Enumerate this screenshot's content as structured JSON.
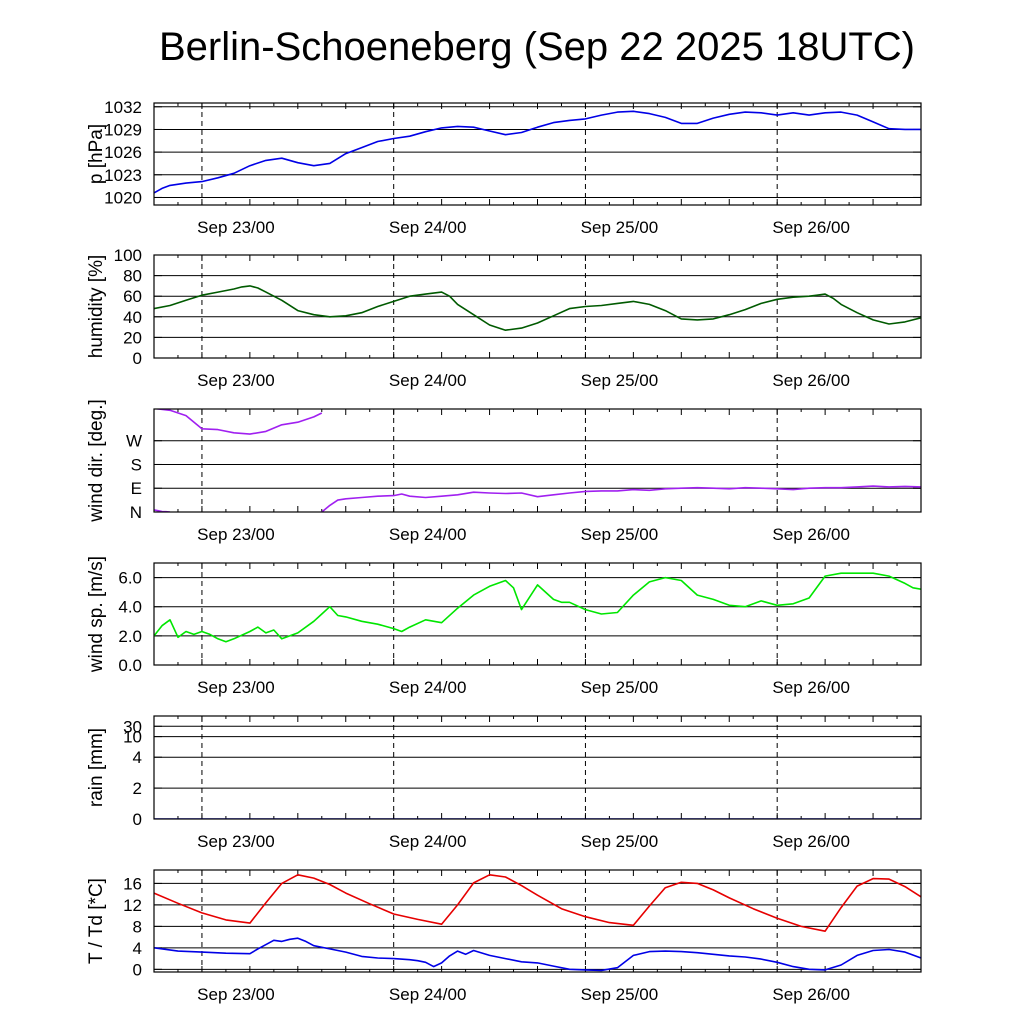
{
  "title": "Berlin-Schoeneberg (Sep 22 2025 18UTC)",
  "chart_data": {
    "type": "line",
    "x_unit": "hours since Sep 22 18UTC",
    "x_range": [
      0,
      96
    ],
    "day_ticks": [
      {
        "x": 6,
        "label": "Sep 23/00"
      },
      {
        "x": 30,
        "label": "Sep 24/00"
      },
      {
        "x": 54,
        "label": "Sep 25/00"
      },
      {
        "x": 78,
        "label": "Sep 26/00"
      }
    ],
    "panels": [
      {
        "id": "pressure",
        "ylabel": "p [hPa]",
        "ylim": [
          1019,
          1032.5
        ],
        "ticks": [
          {
            "v": 1020,
            "label": "1020"
          },
          {
            "v": 1023,
            "label": "1023"
          },
          {
            "v": 1026,
            "label": "1026"
          },
          {
            "v": 1029,
            "label": "1029"
          },
          {
            "v": 1032,
            "label": "1032"
          }
        ],
        "series": [
          {
            "name": "p",
            "color": "#0000e6",
            "x": [
              0,
              1,
              2,
              4,
              6,
              8,
              10,
              12,
              14,
              16,
              18,
              20,
              22,
              24,
              26,
              28,
              30,
              32,
              34,
              36,
              38,
              40,
              42,
              44,
              46,
              48,
              50,
              52,
              54,
              56,
              58,
              60,
              62,
              64,
              66,
              68,
              70,
              72,
              74,
              76,
              78,
              80,
              82,
              84,
              86,
              88,
              90,
              92,
              94,
              96
            ],
            "y": [
              1020.6,
              1021.2,
              1021.6,
              1021.9,
              1022.1,
              1022.6,
              1023.2,
              1024.2,
              1024.9,
              1025.2,
              1024.6,
              1024.2,
              1024.5,
              1025.8,
              1026.6,
              1027.4,
              1027.8,
              1028.1,
              1028.7,
              1029.2,
              1029.4,
              1029.3,
              1028.8,
              1028.3,
              1028.6,
              1029.3,
              1029.9,
              1030.2,
              1030.4,
              1030.9,
              1031.3,
              1031.4,
              1031.1,
              1030.6,
              1029.8,
              1029.8,
              1030.5,
              1031.0,
              1031.3,
              1031.2,
              1030.9,
              1031.2,
              1030.9,
              1031.2,
              1031.3,
              1030.9,
              1030.0,
              1029.1,
              1029.0,
              1029.0
            ]
          }
        ]
      },
      {
        "id": "humidity",
        "ylabel": "humidity [%]",
        "ylim": [
          0,
          100
        ],
        "ticks": [
          {
            "v": 0,
            "label": "0"
          },
          {
            "v": 20,
            "label": "20"
          },
          {
            "v": 40,
            "label": "40"
          },
          {
            "v": 60,
            "label": "60"
          },
          {
            "v": 80,
            "label": "80"
          },
          {
            "v": 100,
            "label": "100"
          }
        ],
        "series": [
          {
            "name": "humidity",
            "color": "#005a00",
            "x": [
              0,
              2,
              4,
              6,
              8,
              10,
              11,
              12,
              13,
              14,
              16,
              18,
              20,
              22,
              24,
              26,
              28,
              30,
              32,
              34,
              35,
              36,
              37,
              38,
              40,
              42,
              44,
              46,
              48,
              50,
              52,
              54,
              56,
              58,
              60,
              62,
              64,
              66,
              68,
              70,
              72,
              74,
              76,
              78,
              80,
              82,
              83,
              84,
              85,
              86,
              88,
              90,
              92,
              94,
              96
            ],
            "y": [
              48,
              51,
              56,
              61,
              64,
              67,
              69,
              70,
              68,
              64,
              56,
              46,
              42,
              40,
              41,
              44,
              50,
              55,
              60,
              62,
              63,
              64,
              60,
              52,
              42,
              32,
              27,
              29,
              34,
              41,
              48,
              50,
              51,
              53,
              55,
              52,
              46,
              38,
              37,
              38,
              42,
              47,
              53,
              57,
              59,
              60,
              61,
              62,
              58,
              52,
              44,
              37,
              33,
              35,
              39
            ]
          }
        ]
      },
      {
        "id": "wind_dir",
        "ylabel": "wind dir. [deg.]",
        "ylim": [
          0,
          390
        ],
        "ticks": [
          {
            "v": 0,
            "label": "N"
          },
          {
            "v": 90,
            "label": "E"
          },
          {
            "v": 180,
            "label": "S"
          },
          {
            "v": 270,
            "label": "W"
          }
        ],
        "series": [
          {
            "name": "wind dir (early)",
            "color": "#a020f0",
            "x": [
              0,
              0.5,
              1,
              1.5,
              2
            ],
            "y": [
              8,
              5,
              2,
              1,
              0
            ]
          },
          {
            "name": "wind dir (west)",
            "color": "#a020f0",
            "x": [
              0,
              2,
              4,
              6,
              8,
              10,
              12,
              14,
              16,
              18,
              20,
              21
            ],
            "y": [
              392,
              385,
              365,
              315,
              312,
              300,
              295,
              305,
              330,
              340,
              360,
              375
            ]
          },
          {
            "name": "wind dir (east)",
            "color": "#a020f0",
            "x": [
              21,
              22,
              23,
              24,
              26,
              28,
              30,
              31,
              32,
              34,
              36,
              38,
              40,
              42,
              44,
              46,
              48,
              50,
              52,
              54,
              56,
              58,
              60,
              62,
              64,
              66,
              68,
              70,
              72,
              74,
              76,
              78,
              80,
              82,
              84,
              86,
              88,
              90,
              92,
              94,
              96
            ],
            "y": [
              0,
              25,
              45,
              50,
              55,
              60,
              62,
              68,
              60,
              55,
              60,
              65,
              75,
              72,
              70,
              72,
              58,
              65,
              72,
              78,
              80,
              80,
              85,
              82,
              88,
              90,
              92,
              90,
              88,
              92,
              90,
              88,
              85,
              90,
              92,
              92,
              95,
              98,
              95,
              97,
              95
            ]
          }
        ]
      },
      {
        "id": "wind_speed",
        "ylabel": "wind sp. [m/s]",
        "ylim": [
          0,
          7
        ],
        "ticks": [
          {
            "v": 0,
            "label": "0.0"
          },
          {
            "v": 2,
            "label": "2.0"
          },
          {
            "v": 4,
            "label": "4.0"
          },
          {
            "v": 6,
            "label": "6.0"
          }
        ],
        "series": [
          {
            "name": "wind speed",
            "color": "#00e600",
            "x": [
              0,
              1,
              2,
              3,
              4,
              5,
              6,
              7,
              8,
              9,
              10,
              12,
              13,
              14,
              15,
              16,
              18,
              20,
              21,
              22,
              23,
              24,
              26,
              28,
              30,
              31,
              32,
              34,
              36,
              38,
              40,
              42,
              43,
              44,
              45,
              46,
              48,
              49,
              50,
              51,
              52,
              54,
              56,
              58,
              60,
              62,
              64,
              66,
              68,
              70,
              72,
              74,
              76,
              78,
              80,
              82,
              84,
              86,
              88,
              90,
              92,
              94,
              95,
              96
            ],
            "y": [
              2.0,
              2.7,
              3.1,
              1.9,
              2.3,
              2.1,
              2.3,
              2.1,
              1.8,
              1.6,
              1.8,
              2.3,
              2.6,
              2.2,
              2.4,
              1.8,
              2.2,
              3.0,
              3.5,
              4.0,
              3.4,
              3.3,
              3.0,
              2.8,
              2.5,
              2.3,
              2.6,
              3.1,
              2.9,
              3.9,
              4.8,
              5.4,
              5.6,
              5.8,
              5.3,
              3.8,
              5.5,
              5.0,
              4.5,
              4.3,
              4.3,
              3.8,
              3.5,
              3.6,
              4.8,
              5.7,
              6.0,
              5.8,
              4.8,
              4.5,
              4.1,
              4.0,
              4.4,
              4.1,
              4.2,
              4.6,
              6.1,
              6.3,
              6.3,
              6.3,
              6.1,
              5.6,
              5.3,
              5.2
            ]
          }
        ]
      },
      {
        "id": "rain",
        "ylabel": "rain [mm]",
        "ylim": [
          0,
          5
        ],
        "ticks": [
          {
            "v": 0,
            "label": "0"
          },
          {
            "v": 1.5,
            "label": "2"
          },
          {
            "v": 3,
            "label": "4"
          },
          {
            "v": 4,
            "label": "10"
          },
          {
            "v": 4.5,
            "label": "30"
          }
        ],
        "series": [
          {
            "name": "rain",
            "color": "#0000e6",
            "x": [
              0,
              96
            ],
            "y": [
              0,
              0
            ]
          }
        ]
      },
      {
        "id": "temperature",
        "ylabel": "T / Td [*C]",
        "ylim": [
          -0.5,
          18.5
        ],
        "ticks": [
          {
            "v": 0,
            "label": "0"
          },
          {
            "v": 4,
            "label": "4"
          },
          {
            "v": 8,
            "label": "8"
          },
          {
            "v": 12,
            "label": "12"
          },
          {
            "v": 16,
            "label": "16"
          }
        ],
        "series": [
          {
            "name": "T",
            "color": "#e60000",
            "x": [
              0,
              3,
              6,
              9,
              12,
              14,
              16,
              18,
              20,
              22,
              24,
              27,
              30,
              33,
              36,
              38,
              40,
              42,
              44,
              46,
              48,
              51,
              54,
              57,
              60,
              62,
              64,
              66,
              68,
              70,
              72,
              75,
              78,
              81,
              84,
              86,
              88,
              90,
              92,
              94,
              96
            ],
            "y": [
              14.2,
              12.3,
              10.5,
              9.2,
              8.6,
              12.4,
              16.0,
              17.6,
              17.0,
              15.8,
              14.2,
              12.2,
              10.3,
              9.3,
              8.4,
              12.0,
              16.1,
              17.6,
              17.2,
              15.6,
              13.8,
              11.3,
              9.8,
              8.7,
              8.2,
              11.8,
              15.2,
              16.2,
              16.0,
              14.8,
              13.3,
              11.3,
              9.5,
              8.0,
              7.1,
              11.5,
              15.5,
              16.9,
              16.8,
              15.4,
              13.5
            ]
          },
          {
            "name": "Td",
            "color": "#0000e6",
            "x": [
              0,
              3,
              6,
              9,
              12,
              13,
              15,
              16,
              17,
              18,
              19,
              20,
              22,
              24,
              26,
              28,
              30,
              32,
              33,
              34,
              35,
              36,
              37,
              38,
              39,
              40,
              42,
              44,
              46,
              48,
              50,
              52,
              54,
              56,
              58,
              60,
              62,
              64,
              66,
              68,
              70,
              72,
              74,
              76,
              78,
              80,
              82,
              84,
              86,
              88,
              90,
              92,
              94,
              96
            ],
            "y": [
              4.0,
              3.4,
              3.2,
              3.0,
              2.9,
              3.8,
              5.4,
              5.2,
              5.6,
              5.8,
              5.2,
              4.4,
              3.8,
              3.2,
              2.4,
              2.1,
              2.0,
              1.8,
              1.6,
              1.3,
              0.5,
              1.2,
              2.5,
              3.4,
              2.8,
              3.5,
              2.6,
              2.0,
              1.4,
              1.2,
              0.6,
              0.0,
              -0.1,
              -0.2,
              0.3,
              2.6,
              3.3,
              3.4,
              3.3,
              3.1,
              2.8,
              2.5,
              2.3,
              1.9,
              1.3,
              0.5,
              0.0,
              -0.1,
              0.8,
              2.6,
              3.5,
              3.7,
              3.2,
              2.1
            ]
          }
        ]
      }
    ]
  }
}
